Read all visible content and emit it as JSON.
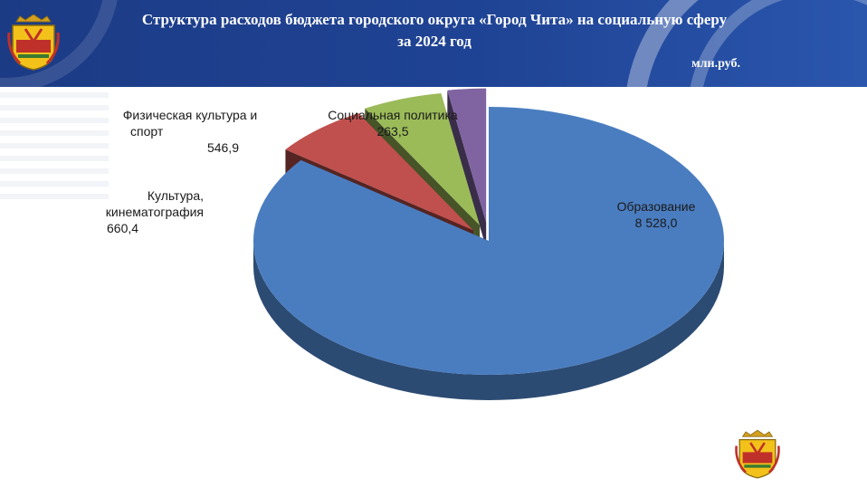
{
  "header": {
    "title_line1": "Структура расходов бюджета городского округа «Город Чита» на социальную сферу",
    "title_line2": "за 2024 год",
    "unit": "млн.руб."
  },
  "colors": {
    "header_bg": "#1f4394",
    "education": "#4a7dc0",
    "culture": "#c0504d",
    "sport": "#9bbb59",
    "social": "#8064a2"
  },
  "icons": {
    "emblem": "city-coat-of-arms"
  },
  "chart_data": {
    "type": "pie",
    "style": "3d-exploded",
    "title": "Структура расходов бюджета городского округа «Город Чита» на социальную сферу за 2024 год",
    "unit": "млн.руб.",
    "slices": [
      {
        "label_line1": "Образование",
        "label_line2": "",
        "value_label": "8 528,0",
        "value": 8528.0,
        "color": "#4a7dc0"
      },
      {
        "label_line1": "Культура,",
        "label_line2": "кинематография",
        "value_label": "660,4",
        "value": 660.4,
        "color": "#c0504d"
      },
      {
        "label_line1": "Физическая культура и",
        "label_line2": "спорт",
        "value_label": "546,9",
        "value": 546.9,
        "color": "#9bbb59"
      },
      {
        "label_line1": "Социальная политика",
        "label_line2": "",
        "value_label": "263,5",
        "value": 263.5,
        "color": "#8064a2"
      }
    ]
  }
}
